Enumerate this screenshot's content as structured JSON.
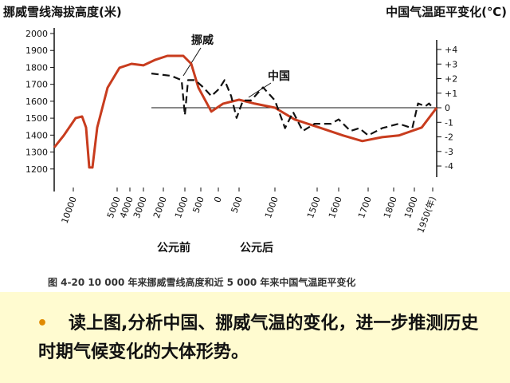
{
  "chart_data": {
    "type": "line",
    "y_label": "挪威雪线海拔高度(米)",
    "y2_label": "中国气温距平变化(℃)",
    "caption": "图 4-20   10 000 年来挪威雪线高度和近 5 000 年来中国气温距平变化",
    "era_labels": [
      "公元前",
      "公元后"
    ],
    "xlim": [
      -12200,
      1965
    ],
    "xticks": [
      {
        "value": -10000,
        "label": "10000"
      },
      {
        "value": -5000,
        "label": "5000"
      },
      {
        "value": -4000,
        "label": "4000"
      },
      {
        "value": -3000,
        "label": "3000"
      },
      {
        "value": -2000,
        "label": "2000"
      },
      {
        "value": -1000,
        "label": "1000"
      },
      {
        "value": -500,
        "label": "500"
      },
      0,
      500,
      1000,
      1500,
      1600,
      1700,
      1800,
      1900,
      {
        "value": 1950,
        "label": "1950(年)"
      }
    ],
    "ylim": [
      1067,
      2033
    ],
    "yticks": [
      1200,
      1300,
      1400,
      1500,
      1600,
      1700,
      1800,
      1900,
      2000
    ],
    "y2lim": [
      -5.75,
      5.48
    ],
    "y2ticks": [
      {
        "value": 4,
        "label": "+4"
      },
      {
        "value": 3,
        "label": "+3"
      },
      {
        "value": 2,
        "label": "+2"
      },
      {
        "value": 1,
        "label": "+1"
      },
      0,
      -1,
      -2,
      -3,
      -4
    ],
    "reference_line": {
      "axis": "y2",
      "value": 0
    },
    "series": [
      {
        "name": "挪威",
        "color": "#c83c1e",
        "dash": false,
        "x": [
          -12200,
          -11100,
          -9730,
          -9000,
          -8550,
          -8180,
          -7820,
          -7270,
          -6090,
          -4810,
          -3880,
          -3000,
          -2400,
          -1815,
          -1075,
          -800,
          -575,
          -200,
          115,
          500,
          720,
          1000,
          1235,
          1510,
          1615,
          1680,
          1755,
          1825,
          1920,
          1965
        ],
        "values": [
          1327,
          1398,
          1501,
          1510,
          1445,
          1209,
          1209,
          1445,
          1680,
          1798,
          1821,
          1812,
          1845,
          1868,
          1868,
          1821,
          1680,
          1539,
          1586,
          1609,
          1586,
          1562,
          1492,
          1445,
          1398,
          1365,
          1388,
          1398,
          1445,
          1562
        ]
      },
      {
        "name": "中国",
        "color": "#111111",
        "dash": true,
        "axis": "y2",
        "x": [
          -2600,
          -1630,
          -1150,
          -1000,
          -900,
          -675,
          -430,
          -200,
          20,
          150,
          310,
          440,
          555,
          665,
          835,
          1000,
          1120,
          1215,
          1330,
          1470,
          1565,
          1600,
          1640,
          1670,
          1700,
          1755,
          1825,
          1890,
          1910,
          1930,
          1940,
          1950
        ],
        "values": [
          2.35,
          2.19,
          1.9,
          -0.5,
          1.9,
          1.9,
          1.4,
          0.8,
          1.3,
          1.9,
          0.8,
          -0.7,
          0.5,
          0.5,
          1.4,
          0.5,
          -1.4,
          -0.3,
          -1.6,
          -1.1,
          -1.1,
          -0.8,
          -1.6,
          -1.4,
          -1.9,
          -1.4,
          -1.1,
          -1.4,
          0.3,
          0.1,
          0.3,
          0
        ]
      }
    ]
  },
  "slide": {
    "question": "读上图,分析中国、挪威气温的变化，进一步推测历史时期气候变化的大体形势。"
  }
}
